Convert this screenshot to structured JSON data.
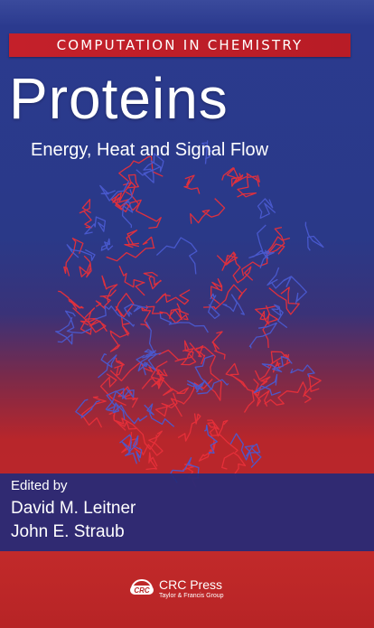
{
  "cover": {
    "series": "COMPUTATION IN CHEMISTRY",
    "title": "Proteins",
    "subtitle": "Energy, Heat and Signal Flow",
    "edited_by_label": "Edited by",
    "editors": [
      "David M. Leitner",
      "John E. Straub"
    ],
    "publisher": {
      "name": "CRC Press",
      "group": "Taylor & Francis Group",
      "logo_text": "CRC"
    }
  },
  "colors": {
    "background_top": "#2b3a8f",
    "background_bottom": "#c0282a",
    "series_band": "#c4202a",
    "text": "#ffffff",
    "molecule_red": "#e8303a",
    "molecule_blue": "#4a5ad0"
  },
  "icons": {
    "molecule": "protein-molecule-illustration",
    "publisher_logo": "crc-press-logo"
  }
}
